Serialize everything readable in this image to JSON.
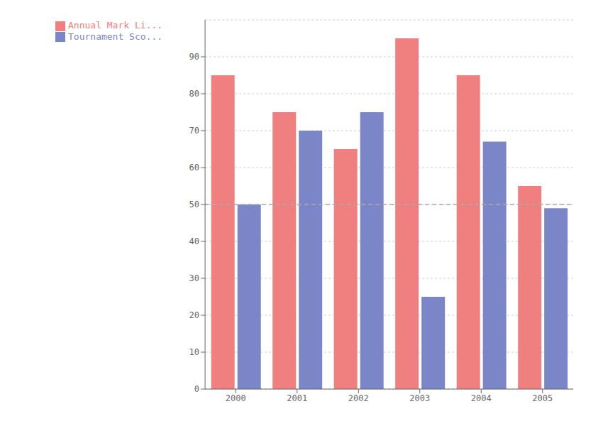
{
  "chart_data": {
    "type": "bar",
    "categories": [
      "2000",
      "2001",
      "2002",
      "2003",
      "2004",
      "2005"
    ],
    "series": [
      {
        "name": "Annual Mark Li...",
        "values": [
          85,
          75,
          65,
          95,
          85,
          55
        ],
        "color": "#f08080"
      },
      {
        "name": "Tournament Sco...",
        "values": [
          50,
          70,
          75,
          25,
          67,
          49
        ],
        "color": "#7b86c8"
      }
    ],
    "ylim": [
      0,
      100
    ],
    "yticks": [
      0,
      10,
      20,
      30,
      40,
      50,
      60,
      70,
      80,
      90
    ],
    "grid": true,
    "legend": "top-left",
    "reference_line": {
      "value": 50,
      "line_style": "dashed",
      "color": "#aaaaaa"
    }
  }
}
